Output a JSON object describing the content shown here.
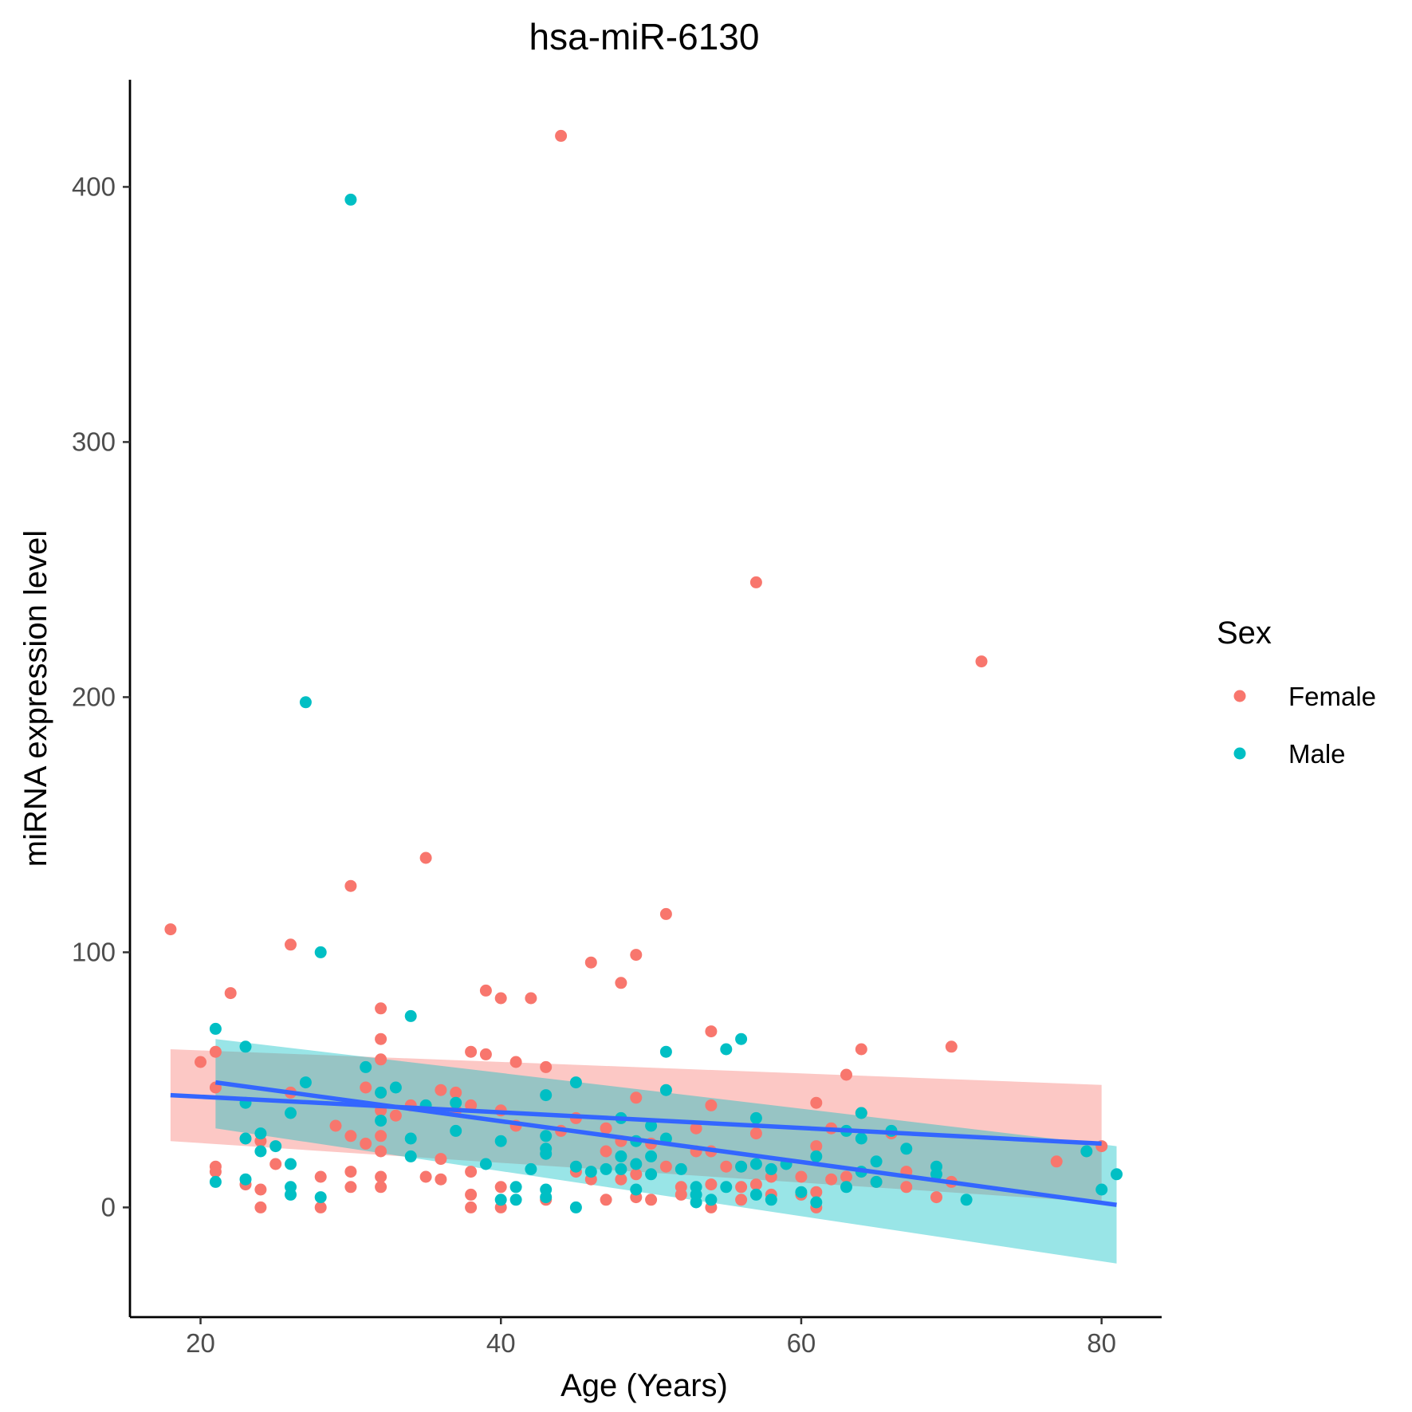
{
  "chart_data": {
    "type": "scatter",
    "title": "hsa-miR-6130",
    "xlabel": "Age (Years)",
    "ylabel": "miRNA expression level",
    "xlim": [
      15.3,
      84.0
    ],
    "ylim": [
      -43,
      442
    ],
    "x_ticks": [
      20,
      40,
      60,
      80
    ],
    "y_ticks": [
      0,
      100,
      200,
      300,
      400
    ],
    "grid": false,
    "legend": {
      "title": "Sex",
      "position": "right"
    },
    "series": [
      {
        "name": "Female",
        "color": "#F8766D",
        "points": [
          [
            18,
            109
          ],
          [
            20,
            57
          ],
          [
            21,
            61
          ],
          [
            21,
            47
          ],
          [
            21,
            16
          ],
          [
            21,
            14
          ],
          [
            22,
            84
          ],
          [
            23,
            9
          ],
          [
            24,
            26
          ],
          [
            24,
            7
          ],
          [
            24,
            0
          ],
          [
            25,
            17
          ],
          [
            26,
            103
          ],
          [
            26,
            45
          ],
          [
            28,
            12
          ],
          [
            28,
            0
          ],
          [
            29,
            32
          ],
          [
            30,
            126
          ],
          [
            30,
            28
          ],
          [
            30,
            14
          ],
          [
            30,
            8
          ],
          [
            31,
            25
          ],
          [
            31,
            47
          ],
          [
            32,
            78
          ],
          [
            32,
            66
          ],
          [
            32,
            58
          ],
          [
            32,
            45
          ],
          [
            32,
            38
          ],
          [
            32,
            28
          ],
          [
            32,
            22
          ],
          [
            32,
            12
          ],
          [
            32,
            8
          ],
          [
            33,
            36
          ],
          [
            34,
            40
          ],
          [
            35,
            137
          ],
          [
            35,
            12
          ],
          [
            36,
            46
          ],
          [
            36,
            19
          ],
          [
            36,
            11
          ],
          [
            37,
            45
          ],
          [
            37,
            38
          ],
          [
            38,
            61
          ],
          [
            38,
            40
          ],
          [
            38,
            14
          ],
          [
            38,
            5
          ],
          [
            38,
            0
          ],
          [
            39,
            85
          ],
          [
            39,
            60
          ],
          [
            40,
            82
          ],
          [
            40,
            38
          ],
          [
            40,
            8
          ],
          [
            40,
            0
          ],
          [
            41,
            57
          ],
          [
            41,
            32
          ],
          [
            42,
            82
          ],
          [
            43,
            55
          ],
          [
            43,
            3
          ],
          [
            44,
            420
          ],
          [
            44,
            30
          ],
          [
            45,
            35
          ],
          [
            45,
            14
          ],
          [
            46,
            96
          ],
          [
            46,
            11
          ],
          [
            47,
            22
          ],
          [
            47,
            31
          ],
          [
            47,
            3
          ],
          [
            48,
            88
          ],
          [
            48,
            26
          ],
          [
            48,
            11
          ],
          [
            49,
            99
          ],
          [
            49,
            43
          ],
          [
            49,
            13
          ],
          [
            49,
            4
          ],
          [
            50,
            25
          ],
          [
            50,
            3
          ],
          [
            51,
            115
          ],
          [
            51,
            16
          ],
          [
            52,
            8
          ],
          [
            52,
            5
          ],
          [
            53,
            31
          ],
          [
            53,
            22
          ],
          [
            54,
            40
          ],
          [
            54,
            22
          ],
          [
            54,
            9
          ],
          [
            54,
            69
          ],
          [
            54,
            0
          ],
          [
            55,
            16
          ],
          [
            56,
            16
          ],
          [
            56,
            8
          ],
          [
            56,
            3
          ],
          [
            57,
            245
          ],
          [
            57,
            29
          ],
          [
            57,
            9
          ],
          [
            58,
            12
          ],
          [
            58,
            5
          ],
          [
            60,
            12
          ],
          [
            60,
            5
          ],
          [
            61,
            41
          ],
          [
            61,
            24
          ],
          [
            61,
            6
          ],
          [
            61,
            0
          ],
          [
            62,
            11
          ],
          [
            62,
            31
          ],
          [
            63,
            52
          ],
          [
            63,
            12
          ],
          [
            64,
            62
          ],
          [
            64,
            37
          ],
          [
            65,
            10
          ],
          [
            66,
            29
          ],
          [
            67,
            14
          ],
          [
            67,
            8
          ],
          [
            69,
            4
          ],
          [
            70,
            63
          ],
          [
            70,
            10
          ],
          [
            72,
            214
          ],
          [
            77,
            18
          ],
          [
            79,
            22
          ],
          [
            80,
            24
          ]
        ]
      },
      {
        "name": "Male",
        "color": "#00BFC4",
        "points": [
          [
            21,
            70
          ],
          [
            21,
            10
          ],
          [
            23,
            63
          ],
          [
            23,
            41
          ],
          [
            23,
            27
          ],
          [
            23,
            11
          ],
          [
            24,
            29
          ],
          [
            24,
            22
          ],
          [
            25,
            24
          ],
          [
            26,
            37
          ],
          [
            26,
            17
          ],
          [
            26,
            8
          ],
          [
            26,
            5
          ],
          [
            27,
            198
          ],
          [
            27,
            49
          ],
          [
            28,
            100
          ],
          [
            28,
            4
          ],
          [
            30,
            395
          ],
          [
            31,
            55
          ],
          [
            32,
            45
          ],
          [
            32,
            34
          ],
          [
            33,
            47
          ],
          [
            34,
            75
          ],
          [
            34,
            27
          ],
          [
            34,
            20
          ],
          [
            35,
            40
          ],
          [
            37,
            41
          ],
          [
            37,
            30
          ],
          [
            39,
            17
          ],
          [
            40,
            26
          ],
          [
            40,
            3
          ],
          [
            41,
            8
          ],
          [
            41,
            3
          ],
          [
            42,
            15
          ],
          [
            43,
            44
          ],
          [
            43,
            28
          ],
          [
            43,
            23
          ],
          [
            43,
            21
          ],
          [
            43,
            7
          ],
          [
            43,
            4
          ],
          [
            45,
            49
          ],
          [
            45,
            16
          ],
          [
            45,
            0
          ],
          [
            46,
            14
          ],
          [
            47,
            15
          ],
          [
            48,
            35
          ],
          [
            48,
            20
          ],
          [
            48,
            15
          ],
          [
            49,
            26
          ],
          [
            49,
            17
          ],
          [
            49,
            7
          ],
          [
            50,
            32
          ],
          [
            50,
            20
          ],
          [
            50,
            13
          ],
          [
            51,
            61
          ],
          [
            51,
            46
          ],
          [
            51,
            27
          ],
          [
            52,
            15
          ],
          [
            53,
            8
          ],
          [
            53,
            5
          ],
          [
            53,
            2
          ],
          [
            54,
            3
          ],
          [
            55,
            62
          ],
          [
            55,
            8
          ],
          [
            56,
            66
          ],
          [
            56,
            16
          ],
          [
            57,
            35
          ],
          [
            57,
            17
          ],
          [
            57,
            5
          ],
          [
            58,
            15
          ],
          [
            58,
            3
          ],
          [
            59,
            17
          ],
          [
            60,
            6
          ],
          [
            61,
            20
          ],
          [
            61,
            2
          ],
          [
            63,
            30
          ],
          [
            63,
            8
          ],
          [
            64,
            37
          ],
          [
            64,
            27
          ],
          [
            64,
            14
          ],
          [
            65,
            18
          ],
          [
            65,
            10
          ],
          [
            66,
            30
          ],
          [
            67,
            23
          ],
          [
            69,
            16
          ],
          [
            69,
            13
          ],
          [
            71,
            3
          ],
          [
            79,
            22
          ],
          [
            80,
            7
          ],
          [
            81,
            13
          ]
        ]
      }
    ],
    "fits": [
      {
        "series": "Female",
        "method": "lm",
        "x": [
          18,
          80
        ],
        "y": [
          44,
          25
        ],
        "ci_lower": [
          26,
          2
        ],
        "ci_upper": [
          62,
          48
        ]
      },
      {
        "series": "Male",
        "method": "lm",
        "x": [
          21,
          81
        ],
        "y": [
          49,
          1
        ],
        "ci_lower": [
          31,
          -22
        ],
        "ci_upper": [
          66,
          24
        ]
      }
    ],
    "fit_line_color": "#3366FF",
    "band_colors": {
      "Female": "#F8766D",
      "Male": "#00BFC4"
    }
  }
}
